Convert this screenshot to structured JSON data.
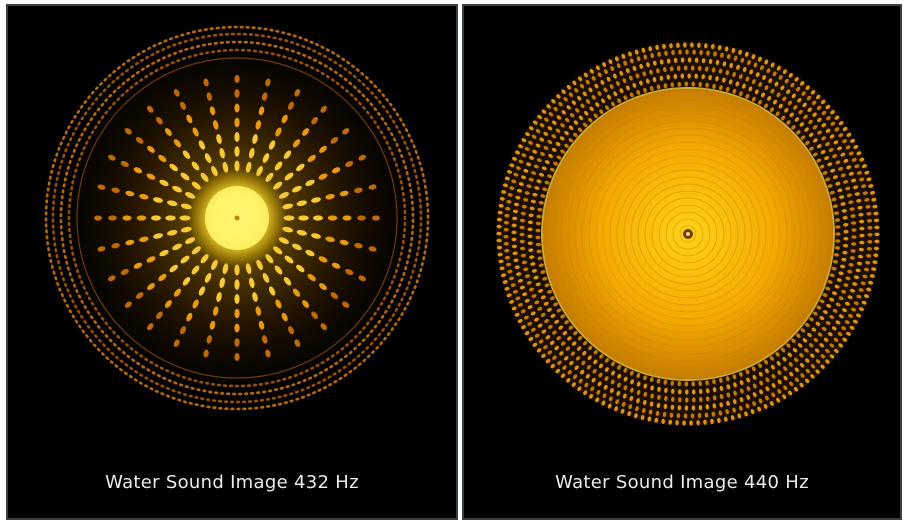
{
  "panels": [
    {
      "caption": "Water Sound Image 432 Hz",
      "frequency_hz": 432,
      "pattern": "radial-petal-mandala"
    },
    {
      "caption": "Water Sound Image 440 Hz",
      "frequency_hz": 440,
      "pattern": "concentric-rings-mandala"
    }
  ],
  "colors": {
    "background": "#000000",
    "frame": "#3a3f44",
    "glow_core": "#fff27a",
    "glow_mid": "#ffb400",
    "glow_outer": "#c26a00",
    "caption_text": "#e9ecef"
  }
}
